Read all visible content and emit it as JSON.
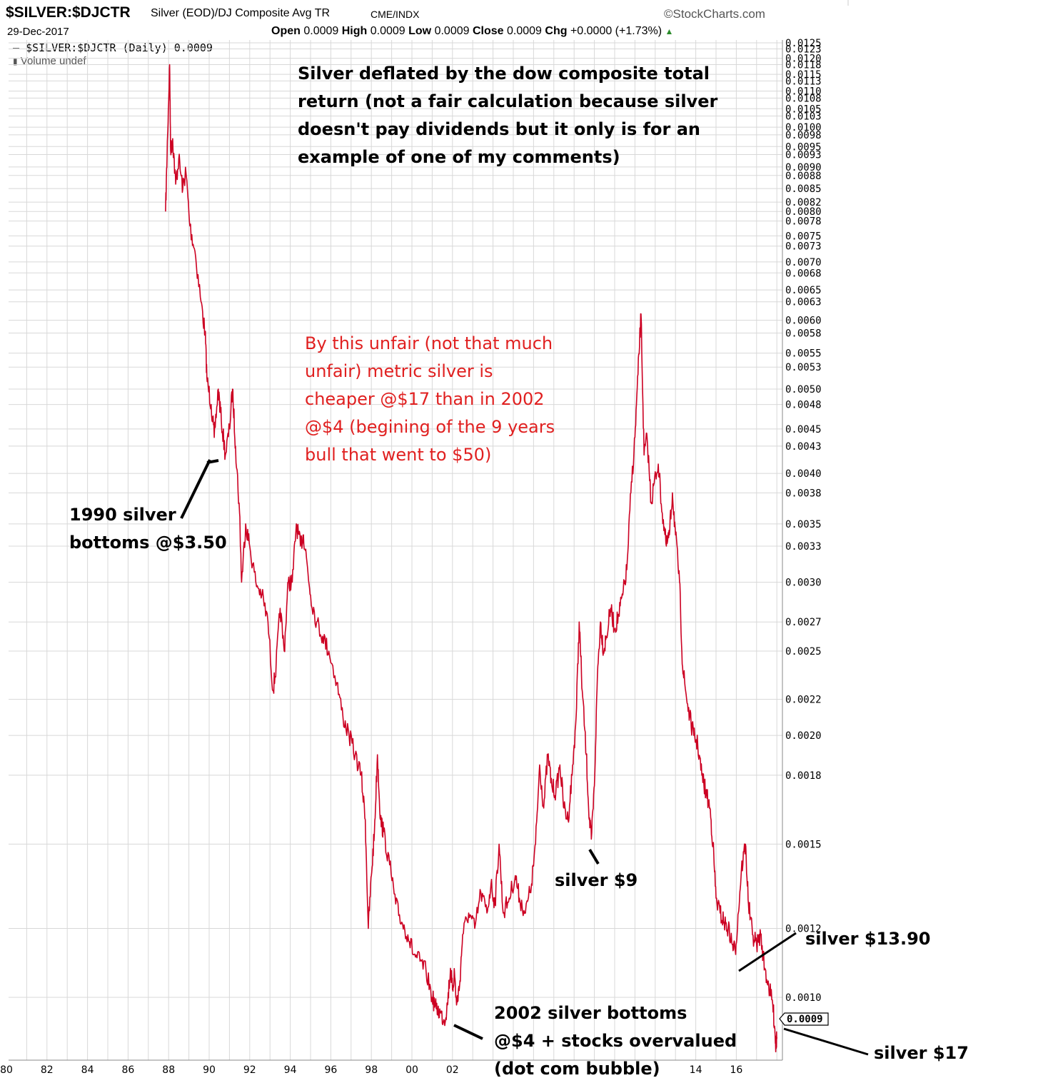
{
  "header": {
    "symbol": "$SILVER:$DJCTR",
    "description": "Silver (EOD)/DJ Composite Avg TR",
    "exchange": "CME/INDX",
    "brand": "©StockCharts.com",
    "date": "29-Dec-2017",
    "open_label": "Open",
    "open_value": "0.0009",
    "high_label": "High",
    "high_value": "0.0009",
    "low_label": "Low",
    "low_value": "0.0009",
    "close_label": "Close",
    "close_value": "0.0009",
    "chg_label": "Chg",
    "chg_value": "+0.0000 (+1.73%)",
    "legend_series": "$SILVER:$DJCTR (Daily) 0.0009",
    "legend_volume": "Volume undef"
  },
  "annotations": {
    "main_l1": "Silver deflated by the dow composite total",
    "main_l2": "return (not a fair calculation because silver",
    "main_l3": "doesn't pay dividends but it only is for an",
    "main_l4": "example of one of my comments)",
    "red_l1": "By this unfair (not that much",
    "red_l2": "unfair) metric silver is",
    "red_l3": "cheaper @$17 than in 2002",
    "red_l4": "@$4 (begining of the 9 years",
    "red_l5": "bull that went to $50)",
    "b1990_l1": "1990 silver",
    "b1990_l2": "bottoms @$3.50",
    "b2002_l1": "2002 silver bottoms",
    "b2002_l2": "@$4 + stocks overvalued",
    "b2002_l3": "(dot com bubble)",
    "s9": "silver $9",
    "s1390": "silver $13.90",
    "s17": "silver $17",
    "last_value": "0.0009"
  },
  "colors": {
    "line": "#cc0022",
    "grid": "#d8d8d8",
    "red_text": "#e02020"
  },
  "chart_data": {
    "type": "line",
    "title": "$SILVER:$DJCTR",
    "y_scale": "log",
    "ylim": [
      0.00085,
      0.0127
    ],
    "xlim": [
      1980.0,
      2018.35
    ],
    "y_ticks": [
      "0.0125",
      "0.0123",
      "0.0120",
      "0.0118",
      "0.0115",
      "0.0113",
      "0.0110",
      "0.0108",
      "0.0105",
      "0.0103",
      "0.0100",
      "0.0098",
      "0.0095",
      "0.0093",
      "0.0090",
      "0.0088",
      "0.0085",
      "0.0082",
      "0.0080",
      "0.0078",
      "0.0075",
      "0.0073",
      "0.0070",
      "0.0068",
      "0.0065",
      "0.0063",
      "0.0060",
      "0.0058",
      "0.0055",
      "0.0053",
      "0.0050",
      "0.0048",
      "0.0045",
      "0.0043",
      "0.0040",
      "0.0038",
      "0.0035",
      "0.0033",
      "0.0030",
      "0.0027",
      "0.0025",
      "0.0022",
      "0.0020",
      "0.0018",
      "0.0015",
      "0.0012",
      "0.0010"
    ],
    "x_ticks": [
      "80",
      "82",
      "84",
      "86",
      "88",
      "90",
      "92",
      "94",
      "96",
      "98",
      "00",
      "02",
      "14",
      "16"
    ],
    "series": [
      {
        "values": [
          [
            1987.85,
            0.008
          ],
          [
            1987.95,
            0.0098
          ],
          [
            1988.05,
            0.0118
          ],
          [
            1988.1,
            0.0094
          ],
          [
            1988.2,
            0.0097
          ],
          [
            1988.35,
            0.0086
          ],
          [
            1988.5,
            0.0092
          ],
          [
            1988.7,
            0.0085
          ],
          [
            1988.85,
            0.0089
          ],
          [
            1989.05,
            0.0077
          ],
          [
            1989.3,
            0.0072
          ],
          [
            1989.6,
            0.0063
          ],
          [
            1989.8,
            0.0058
          ],
          [
            1989.9,
            0.0051
          ],
          [
            1990.1,
            0.0048
          ],
          [
            1990.25,
            0.0044
          ],
          [
            1990.45,
            0.005
          ],
          [
            1990.6,
            0.0046
          ],
          [
            1990.8,
            0.0042
          ],
          [
            1991.0,
            0.0045
          ],
          [
            1991.15,
            0.005
          ],
          [
            1991.3,
            0.0043
          ],
          [
            1991.5,
            0.0036
          ],
          [
            1991.6,
            0.003
          ],
          [
            1991.8,
            0.0035
          ],
          [
            1992.0,
            0.0033
          ],
          [
            1992.3,
            0.003
          ],
          [
            1992.6,
            0.0029
          ],
          [
            1992.9,
            0.0027
          ],
          [
            1993.15,
            0.00225
          ],
          [
            1993.3,
            0.0024
          ],
          [
            1993.5,
            0.0028
          ],
          [
            1993.7,
            0.0025
          ],
          [
            1993.9,
            0.003
          ],
          [
            1994.1,
            0.003
          ],
          [
            1994.3,
            0.0035
          ],
          [
            1994.5,
            0.0033
          ],
          [
            1994.65,
            0.0034
          ],
          [
            1994.8,
            0.0032
          ],
          [
            1995.0,
            0.0029
          ],
          [
            1995.3,
            0.0027
          ],
          [
            1995.6,
            0.0026
          ],
          [
            1995.9,
            0.0025
          ],
          [
            1996.3,
            0.0023
          ],
          [
            1996.6,
            0.0021
          ],
          [
            1996.9,
            0.002
          ],
          [
            1997.2,
            0.0019
          ],
          [
            1997.5,
            0.0018
          ],
          [
            1997.7,
            0.0016
          ],
          [
            1997.85,
            0.0012
          ],
          [
            1998.0,
            0.00138
          ],
          [
            1998.15,
            0.00155
          ],
          [
            1998.3,
            0.0019
          ],
          [
            1998.45,
            0.0016
          ],
          [
            1998.6,
            0.00155
          ],
          [
            1998.9,
            0.00142
          ],
          [
            1999.2,
            0.00128
          ],
          [
            1999.5,
            0.00122
          ],
          [
            1999.8,
            0.00118
          ],
          [
            2000.1,
            0.00112
          ],
          [
            2000.4,
            0.0011
          ],
          [
            2000.7,
            0.00107
          ],
          [
            2001.0,
            0.001
          ],
          [
            2001.2,
            0.00097
          ],
          [
            2001.4,
            0.00096
          ],
          [
            2001.6,
            0.00094
          ],
          [
            2001.75,
            0.00098
          ],
          [
            2001.9,
            0.00108
          ],
          [
            2002.0,
            0.00102
          ],
          [
            2002.1,
            0.00107
          ],
          [
            2002.2,
            0.00098
          ],
          [
            2002.35,
            0.00103
          ],
          [
            2002.5,
            0.00118
          ],
          [
            2002.8,
            0.00125
          ],
          [
            2003.1,
            0.0012
          ],
          [
            2003.4,
            0.00132
          ],
          [
            2003.7,
            0.00125
          ],
          [
            2003.9,
            0.00135
          ],
          [
            2004.1,
            0.00128
          ],
          [
            2004.3,
            0.0015
          ],
          [
            2004.5,
            0.00125
          ],
          [
            2004.8,
            0.0013
          ],
          [
            2005.1,
            0.00138
          ],
          [
            2005.3,
            0.0013
          ],
          [
            2005.6,
            0.00125
          ],
          [
            2005.9,
            0.00135
          ],
          [
            2006.1,
            0.0015
          ],
          [
            2006.3,
            0.00185
          ],
          [
            2006.5,
            0.00165
          ],
          [
            2006.7,
            0.0019
          ],
          [
            2006.9,
            0.00175
          ],
          [
            2007.1,
            0.00172
          ],
          [
            2007.3,
            0.00185
          ],
          [
            2007.5,
            0.00165
          ],
          [
            2007.7,
            0.0016
          ],
          [
            2007.9,
            0.0018
          ],
          [
            2008.1,
            0.0021
          ],
          [
            2008.25,
            0.0027
          ],
          [
            2008.4,
            0.00225
          ],
          [
            2008.6,
            0.0019
          ],
          [
            2008.75,
            0.0016
          ],
          [
            2008.85,
            0.00152
          ],
          [
            2009.0,
            0.00175
          ],
          [
            2009.15,
            0.00235
          ],
          [
            2009.3,
            0.0027
          ],
          [
            2009.45,
            0.0025
          ],
          [
            2009.6,
            0.0026
          ],
          [
            2009.8,
            0.0028
          ],
          [
            2010.0,
            0.00265
          ],
          [
            2010.2,
            0.00275
          ],
          [
            2010.4,
            0.0029
          ],
          [
            2010.6,
            0.0031
          ],
          [
            2010.8,
            0.0038
          ],
          [
            2011.0,
            0.0044
          ],
          [
            2011.15,
            0.0052
          ],
          [
            2011.3,
            0.0061
          ],
          [
            2011.45,
            0.0042
          ],
          [
            2011.6,
            0.0044
          ],
          [
            2011.8,
            0.0037
          ],
          [
            2011.95,
            0.0039
          ],
          [
            2012.15,
            0.0041
          ],
          [
            2012.35,
            0.0036
          ],
          [
            2012.55,
            0.0033
          ],
          [
            2012.7,
            0.0034
          ],
          [
            2012.85,
            0.0038
          ],
          [
            2013.0,
            0.0034
          ],
          [
            2013.2,
            0.003
          ],
          [
            2013.35,
            0.0024
          ],
          [
            2013.5,
            0.00225
          ],
          [
            2013.7,
            0.0021
          ],
          [
            2013.9,
            0.002
          ],
          [
            2014.1,
            0.00195
          ],
          [
            2014.3,
            0.0018
          ],
          [
            2014.5,
            0.00172
          ],
          [
            2014.7,
            0.00165
          ],
          [
            2014.85,
            0.0015
          ],
          [
            2015.0,
            0.0013
          ],
          [
            2015.2,
            0.00125
          ],
          [
            2015.4,
            0.00122
          ],
          [
            2015.6,
            0.0012
          ],
          [
            2015.8,
            0.00115
          ],
          [
            2015.95,
            0.00113
          ],
          [
            2016.1,
            0.00125
          ],
          [
            2016.25,
            0.0014
          ],
          [
            2016.45,
            0.0015
          ],
          [
            2016.6,
            0.00128
          ],
          [
            2016.8,
            0.00118
          ],
          [
            2017.0,
            0.00115
          ],
          [
            2017.2,
            0.00118
          ],
          [
            2017.4,
            0.00108
          ],
          [
            2017.6,
            0.00103
          ],
          [
            2017.8,
            0.00098
          ],
          [
            2017.9,
            0.00092
          ],
          [
            2017.95,
            0.00088
          ],
          [
            2018.0,
            0.0009
          ]
        ]
      }
    ]
  }
}
